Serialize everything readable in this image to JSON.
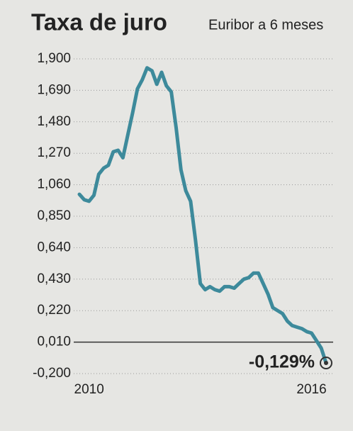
{
  "chart_data": {
    "type": "line",
    "title": "Taxa de juro",
    "subtitle": "Euribor a 6 meses",
    "annotation": "-0,129%",
    "color": "#3d8a9b",
    "grid": true,
    "ylim": [
      -0.2,
      1.9
    ],
    "yticks": [
      {
        "value": 1.9,
        "label": "1,900"
      },
      {
        "value": 1.69,
        "label": "1,690"
      },
      {
        "value": 1.48,
        "label": "1,480"
      },
      {
        "value": 1.27,
        "label": "1,270"
      },
      {
        "value": 1.06,
        "label": "1,060"
      },
      {
        "value": 0.85,
        "label": "0,850"
      },
      {
        "value": 0.64,
        "label": "0,640"
      },
      {
        "value": 0.43,
        "label": "0,430"
      },
      {
        "value": 0.22,
        "label": "0,220"
      },
      {
        "value": 0.01,
        "label": "0,010"
      },
      {
        "value": -0.2,
        "label": "-0,200"
      }
    ],
    "categories": [
      null,
      null,
      "2010",
      null,
      null,
      null,
      null,
      null,
      null,
      null,
      null,
      null,
      null,
      null,
      null,
      null,
      null,
      null,
      null,
      null,
      null,
      null,
      null,
      null,
      null,
      null,
      null,
      null,
      null,
      null,
      null,
      null,
      null,
      null,
      null,
      null,
      null,
      null,
      null,
      null,
      null,
      null,
      null,
      null,
      null,
      null,
      null,
      null,
      "2016",
      null,
      null,
      null
    ],
    "values": [
      0.996,
      0.96,
      0.95,
      0.99,
      1.13,
      1.17,
      1.19,
      1.28,
      1.29,
      1.24,
      1.39,
      1.54,
      1.7,
      1.76,
      1.84,
      1.82,
      1.73,
      1.81,
      1.72,
      1.68,
      1.44,
      1.16,
      1.02,
      0.95,
      0.69,
      0.4,
      0.36,
      0.38,
      0.36,
      0.35,
      0.38,
      0.38,
      0.37,
      0.4,
      0.43,
      0.44,
      0.47,
      0.47,
      0.4,
      0.33,
      0.24,
      0.22,
      0.2,
      0.15,
      0.12,
      0.11,
      0.1,
      0.08,
      0.07,
      0.02,
      -0.03,
      -0.129
    ]
  }
}
